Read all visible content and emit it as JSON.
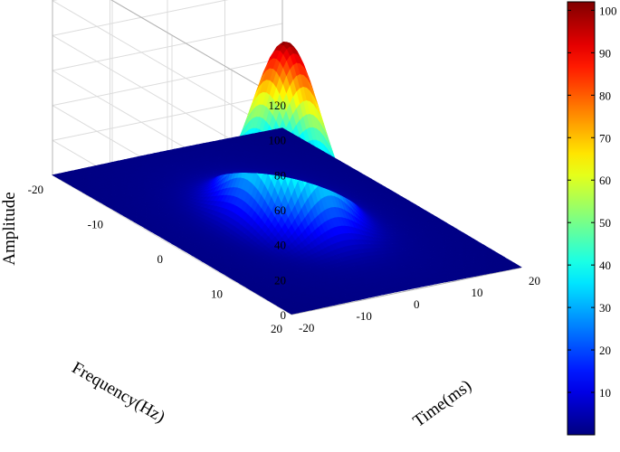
{
  "chart_data": {
    "type": "surface3d",
    "title": "",
    "xlabel": "Time(ms)",
    "ylabel": "Frequency(Hz)",
    "zlabel": "Amplitude",
    "xlim": [
      -20,
      20
    ],
    "ylim": [
      -20,
      20
    ],
    "zlim": [
      0,
      120
    ],
    "x_ticks": [
      "-20",
      "-10",
      "0",
      "10",
      "20"
    ],
    "y_ticks": [
      "-20",
      "-10",
      "0",
      "10",
      "20"
    ],
    "z_ticks": [
      "0",
      "20",
      "40",
      "60",
      "80",
      "100",
      "120"
    ],
    "grid": true,
    "peak": {
      "x": 0,
      "y": 0,
      "z": 100
    },
    "colormap": "jet",
    "colorbar": {
      "range": [
        0,
        102
      ],
      "ticks": [
        "10",
        "20",
        "30",
        "40",
        "50",
        "60",
        "70",
        "80",
        "90",
        "100"
      ],
      "placement": "right"
    }
  }
}
